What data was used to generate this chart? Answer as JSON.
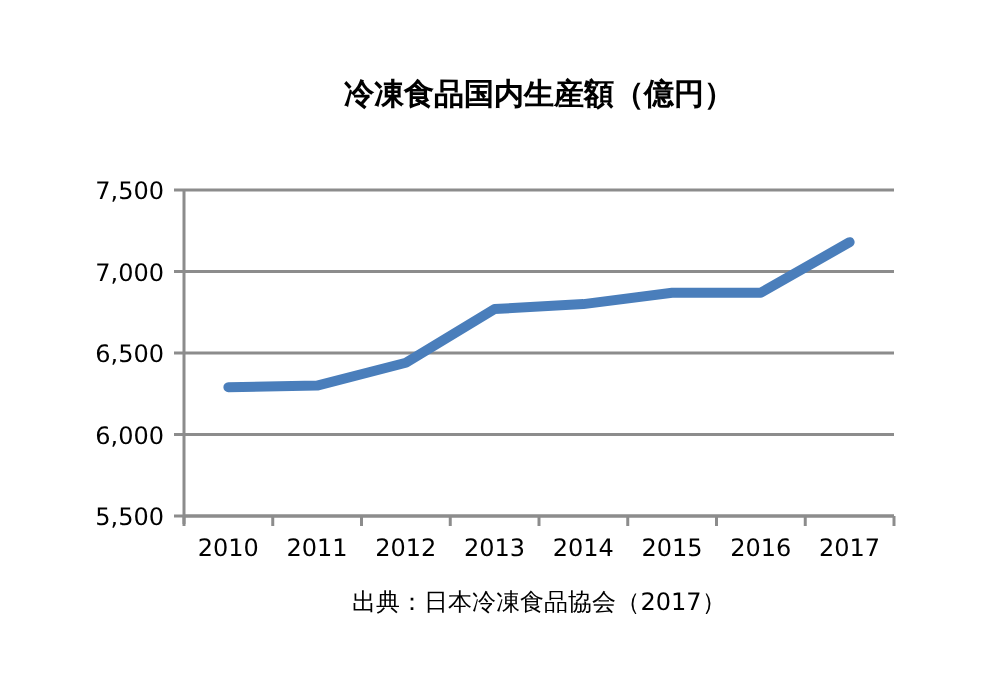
{
  "chart_data": {
    "type": "line",
    "title": "冷凍食品国内生産額（億円）",
    "categories": [
      "2010",
      "2011",
      "2012",
      "2013",
      "2014",
      "2015",
      "2016",
      "2017"
    ],
    "series": [
      {
        "color": "#4a7ebb",
        "values": [
          6290,
          6300,
          6440,
          6770,
          6800,
          6870,
          6870,
          7180
        ]
      }
    ],
    "ylim": [
      5500,
      7500
    ],
    "yticks": [
      {
        "value": 5500,
        "label": "5,500"
      },
      {
        "value": 6000,
        "label": "6,000"
      },
      {
        "value": 6500,
        "label": "6,500"
      },
      {
        "value": 7000,
        "label": "7,000"
      },
      {
        "value": 7500,
        "label": "7,500"
      }
    ],
    "grid": "y",
    "marker": "none",
    "line_style": "solid",
    "annotations": [
      "出典：日本冷凍食品協会（2017）"
    ]
  }
}
